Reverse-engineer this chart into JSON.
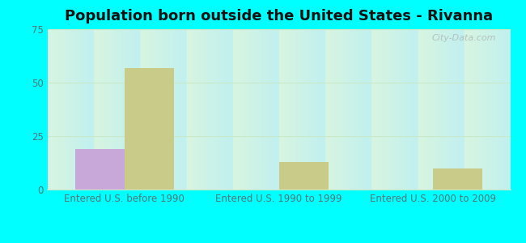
{
  "title": "Population born outside the United States - Rivanna",
  "categories": [
    "Entered U.S. before 1990",
    "Entered U.S. 1990 to 1999",
    "Entered U.S. 2000 to 2009"
  ],
  "native_values": [
    19,
    0,
    0
  ],
  "foreign_values": [
    57,
    13,
    10
  ],
  "native_color": "#c8a8d8",
  "foreign_color": "#c8cc88",
  "ylim": [
    0,
    75
  ],
  "yticks": [
    0,
    25,
    50,
    75
  ],
  "bar_width": 0.32,
  "bg_top_left": "#d8f5e0",
  "bg_bottom_right": "#c0f0f0",
  "outer_bg": "#00ffff",
  "grid_color": "#c8e8c8",
  "watermark": "City-Data.com",
  "title_fontsize": 13,
  "axis_label_fontsize": 8.5,
  "legend_fontsize": 9,
  "ytick_color": "#507878",
  "xtick_color": "#507878"
}
